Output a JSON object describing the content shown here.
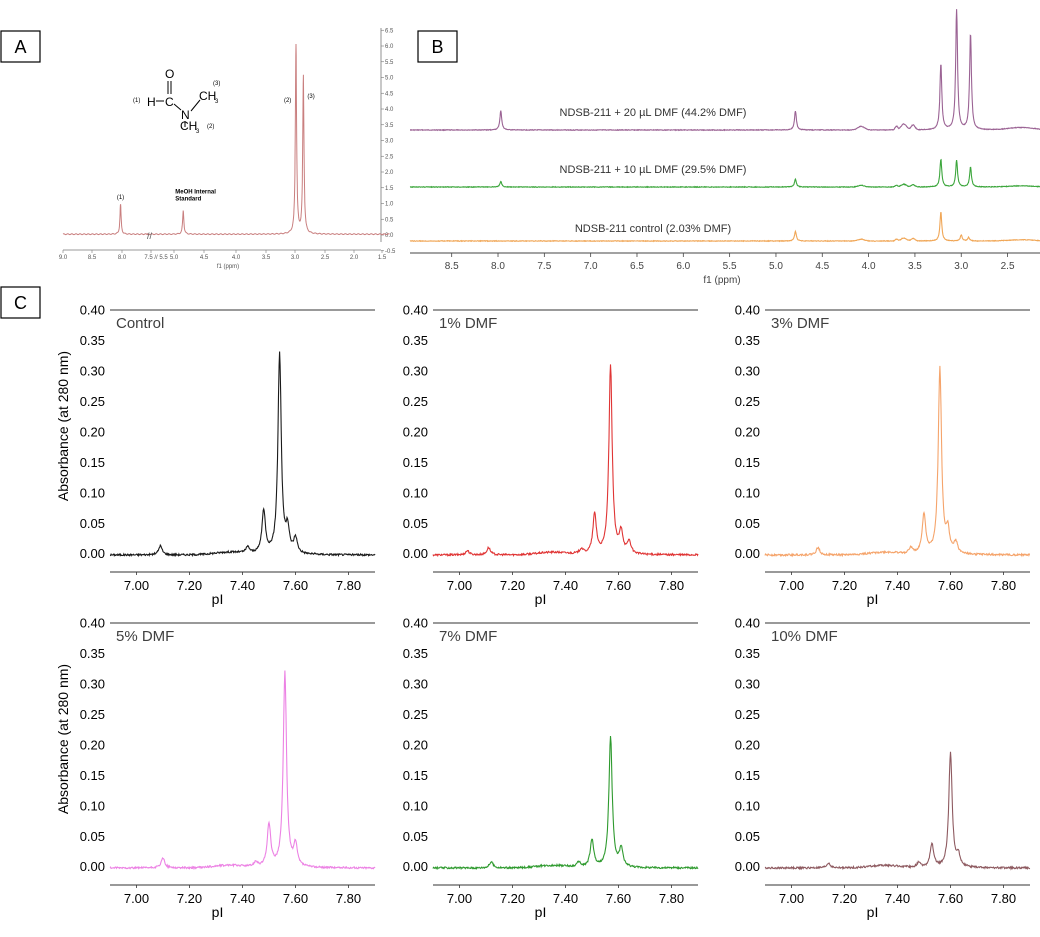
{
  "panels": {
    "A": "A",
    "B": "B",
    "C": "C"
  },
  "molecule": {
    "atoms": {
      "O": "O",
      "H": "H",
      "C": "C",
      "N": "N",
      "CH3_top": "CH",
      "CH3_bottom": "CH",
      "sub3": "3"
    },
    "numbers": [
      "(1)",
      "(2)",
      "(3)"
    ]
  },
  "chart_data": [
    {
      "panel": "A",
      "type": "line",
      "xlabel": "f1 (ppm)",
      "x_ticks": [
        "9.0",
        "8.5",
        "8.0",
        "7.5",
        "5.0",
        "4.5",
        "4.0",
        "3.5",
        "3.0",
        "2.5",
        "2.0",
        "1.5"
      ],
      "x_ticks_break": "7.5 // 5.5",
      "y_ticks": [
        "6.5",
        "6.0",
        "5.5",
        "5.0",
        "4.5",
        "4.0",
        "3.5",
        "3.0",
        "2.5",
        "2.0",
        "1.5",
        "1.0",
        "0.5",
        "0.0",
        "-0.5"
      ],
      "color": "#c97f7f",
      "annotations": [
        "(1)",
        "MeOH Internal Standard",
        "(2)",
        "(3)"
      ],
      "peaks": [
        {
          "x": 8.02,
          "y": 0.95
        },
        {
          "x": 4.85,
          "y": 0.75
        },
        {
          "x": 3.02,
          "y": 6.0
        },
        {
          "x": 2.9,
          "y": 5.0
        }
      ]
    },
    {
      "panel": "B",
      "type": "line",
      "xlabel": "f1 (ppm)",
      "xlim": [
        8.95,
        2.15
      ],
      "x_ticks": [
        "8.5",
        "8.0",
        "7.5",
        "7.0",
        "6.5",
        "6.0",
        "5.5",
        "5.0",
        "4.5",
        "4.0",
        "3.5",
        "3.0",
        "2.5"
      ],
      "series": [
        {
          "name": "NDSB-211 + 20 µL DMF (44.2% DMF)",
          "color": "#9b6394",
          "peaks": [
            [
              7.97,
              0.16
            ],
            [
              4.79,
              0.16
            ],
            [
              3.22,
              0.55
            ],
            [
              3.05,
              1.0
            ],
            [
              2.9,
              0.8
            ]
          ]
        },
        {
          "name": "NDSB-211 + 10 µL DMF (29.5% DMF)",
          "color": "#3ca63c",
          "peaks": [
            [
              7.97,
              0.1
            ],
            [
              4.79,
              0.14
            ],
            [
              3.22,
              0.5
            ],
            [
              3.05,
              0.48
            ],
            [
              2.9,
              0.36
            ]
          ]
        },
        {
          "name": "NDSB-211 control (2.03% DMF)",
          "color": "#f0a656",
          "peaks": [
            [
              4.79,
              0.16
            ],
            [
              3.22,
              0.48
            ],
            [
              3.0,
              0.1
            ],
            [
              2.92,
              0.06
            ]
          ]
        }
      ]
    },
    {
      "panel": "C",
      "type": "line",
      "xlabel": "pI",
      "ylabel": "Absorbance (at 280 nm)",
      "xlim": [
        6.9,
        7.9
      ],
      "ylim": [
        -0.03,
        0.4
      ],
      "x_ticks": [
        "7.00",
        "7.20",
        "7.40",
        "7.60",
        "7.80"
      ],
      "y_ticks": [
        "0.00",
        "0.05",
        "0.10",
        "0.15",
        "0.20",
        "0.25",
        "0.30",
        "0.35",
        "0.40"
      ],
      "subplots": [
        {
          "name": "Control",
          "color": "#1a1a1a",
          "peaks": [
            [
              7.09,
              0.015
            ],
            [
              7.42,
              0.01
            ],
            [
              7.48,
              0.07
            ],
            [
              7.54,
              0.33
            ],
            [
              7.57,
              0.038
            ],
            [
              7.6,
              0.025
            ]
          ]
        },
        {
          "name": "1% DMF",
          "color": "#e03535",
          "peaks": [
            [
              7.03,
              0.007
            ],
            [
              7.11,
              0.012
            ],
            [
              7.46,
              0.008
            ],
            [
              7.51,
              0.065
            ],
            [
              7.57,
              0.31
            ],
            [
              7.61,
              0.035
            ],
            [
              7.64,
              0.02
            ]
          ]
        },
        {
          "name": "3% DMF",
          "color": "#f5a46b",
          "peaks": [
            [
              7.1,
              0.012
            ],
            [
              7.45,
              0.01
            ],
            [
              7.5,
              0.065
            ],
            [
              7.56,
              0.305
            ],
            [
              7.59,
              0.035
            ],
            [
              7.62,
              0.018
            ]
          ]
        },
        {
          "name": "5% DMF",
          "color": "#ec82e4",
          "peaks": [
            [
              7.1,
              0.016
            ],
            [
              7.45,
              0.008
            ],
            [
              7.5,
              0.07
            ],
            [
              7.56,
              0.32
            ],
            [
              7.6,
              0.035
            ]
          ]
        },
        {
          "name": "7% DMF",
          "color": "#2e9a2e",
          "peaks": [
            [
              7.12,
              0.01
            ],
            [
              7.45,
              0.008
            ],
            [
              7.5,
              0.045
            ],
            [
              7.57,
              0.215
            ],
            [
              7.61,
              0.03
            ]
          ]
        },
        {
          "name": "10% DMF",
          "color": "#8e5a60",
          "peaks": [
            [
              7.14,
              0.008
            ],
            [
              7.48,
              0.008
            ],
            [
              7.53,
              0.038
            ],
            [
              7.6,
              0.19
            ],
            [
              7.63,
              0.018
            ]
          ]
        }
      ]
    }
  ]
}
